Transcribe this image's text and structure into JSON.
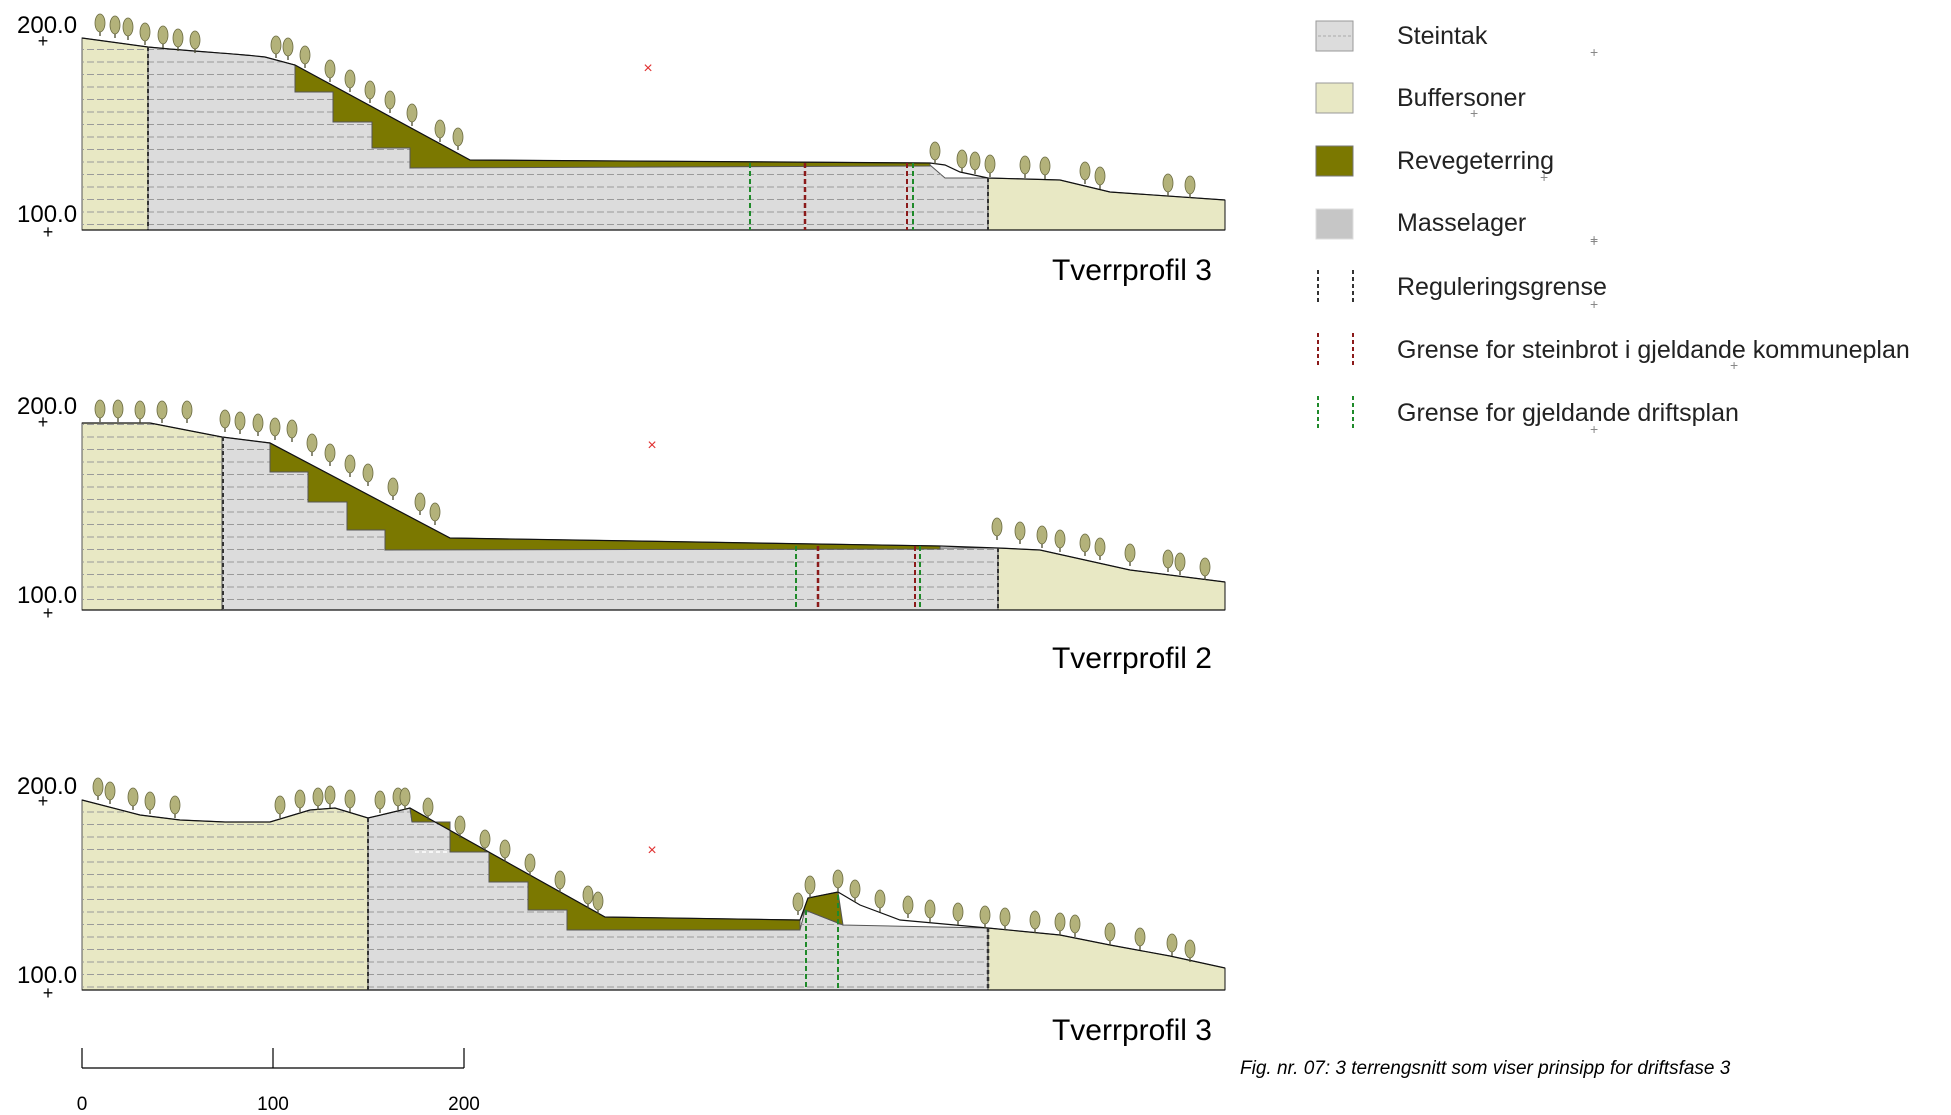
{
  "profiles": [
    {
      "title": "Tverrprofil 3",
      "y_top_label": "200.0",
      "y_bottom_label": "100.0"
    },
    {
      "title": "Tverrprofil 2",
      "y_top_label": "200.0",
      "y_bottom_label": "100.0"
    },
    {
      "title": "Tverrprofil 3",
      "y_top_label": "200.0",
      "y_bottom_label": "100.0"
    }
  ],
  "legend": [
    {
      "label": "Steintak",
      "kind": "fill",
      "color": "#dcdcdc"
    },
    {
      "label": "Buffersoner",
      "kind": "fill",
      "color": "#e8e8c4"
    },
    {
      "label": "Revegeterring",
      "kind": "fill",
      "color": "#7b7800"
    },
    {
      "label": "Masselager",
      "kind": "fill",
      "color": "#c6c6c6"
    },
    {
      "label": "Reguleringsgrense",
      "kind": "line",
      "color": "#333333"
    },
    {
      "label": "Grense for steinbrot i gjeldande kommuneplan",
      "kind": "line",
      "color": "#8b1a1a"
    },
    {
      "label": "Grense for gjeldande driftsplan",
      "kind": "line",
      "color": "#1f8a2a"
    }
  ],
  "scale_bar": {
    "labels": [
      "0",
      "100",
      "200"
    ]
  },
  "caption": "Fig. nr. 07: 3 terrengsnitt som viser prinsipp for driftsfase 3",
  "colors": {
    "steintak": "#dcdcdc",
    "buffer": "#e8e8c4",
    "revegetering": "#7b7800",
    "masselager": "#c6c6c6",
    "regulering": "#333333",
    "kommuneplan": "#8b1a1a",
    "driftsplan": "#1f8a2a",
    "tree": "#b3b27a",
    "marker": "#e03030"
  }
}
